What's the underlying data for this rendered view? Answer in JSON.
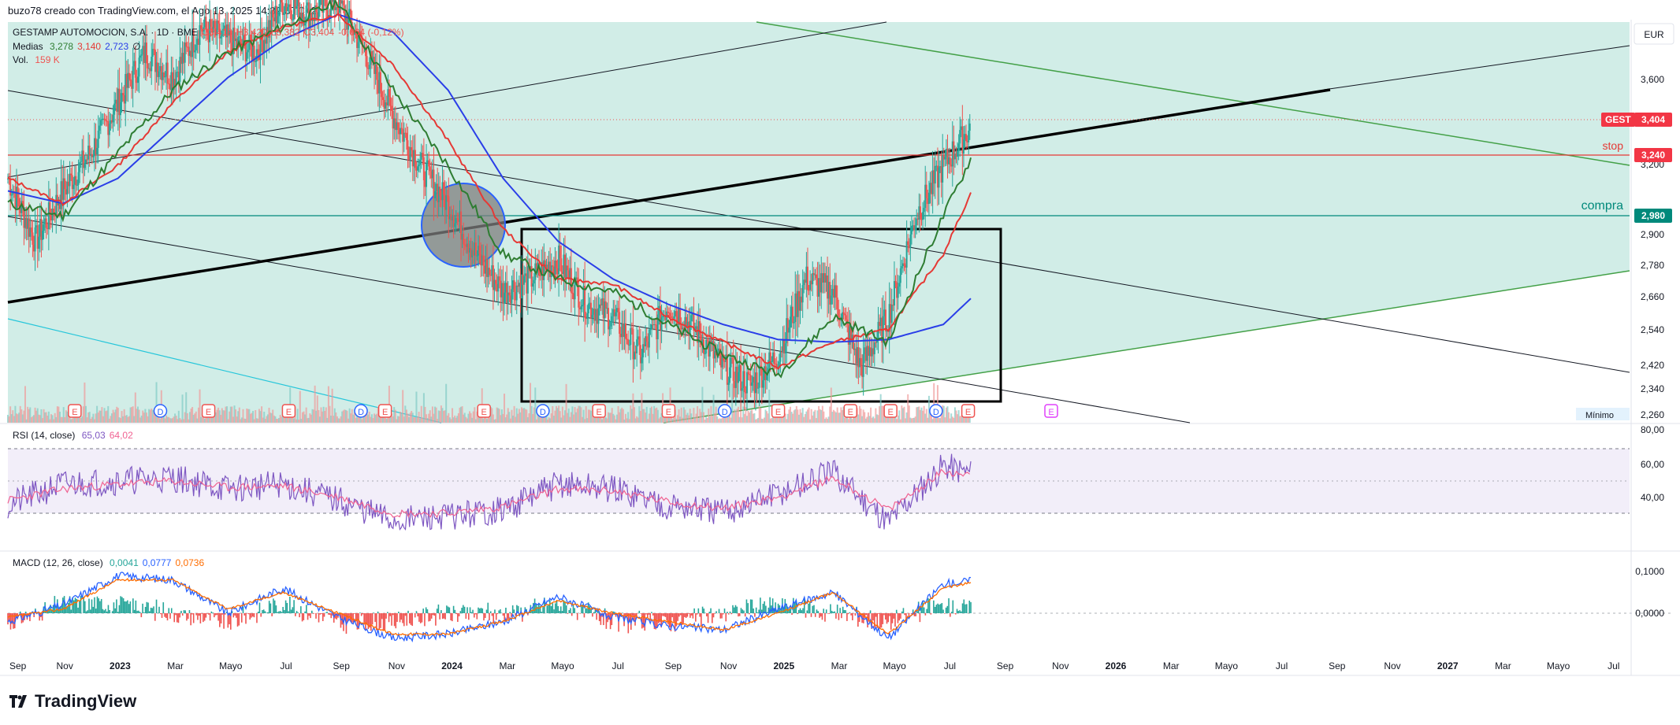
{
  "credit": "buzo78 creado con TradingView.com, el Ago 13, 2025 14:32 UTC+2",
  "currency": "EUR",
  "colors": {
    "channel_fill": "#d1ede7",
    "candle_up": "#26a69a",
    "candle_down": "#ef5350",
    "ma_green": "#2e7d32",
    "ma_red": "#e53935",
    "ma_blue": "#2a3ee8",
    "rsi_line": "#7e57c2",
    "rsi_ma": "#f06292",
    "macd_line": "#2962ff",
    "signal_line": "#ff6d00",
    "stop": "#e53935",
    "compra": "#00897b"
  },
  "legend": {
    "symbol_row": [
      {
        "text": "GESTAMP AUTOMOCION, S.A. · 1D · BME",
        "color": "#131722"
      },
      {
        "text": "O3,418",
        "color": "#ef5350"
      },
      {
        "text": "H3,420",
        "color": "#ef5350"
      },
      {
        "text": "L3,382",
        "color": "#ef5350"
      },
      {
        "text": "C3,404",
        "color": "#ef5350"
      },
      {
        "text": "-0,004 (-0,12%)",
        "color": "#ef5350"
      }
    ],
    "medias_label": "Medias",
    "medias_values": [
      {
        "text": "3,278",
        "color": "#2e7d32"
      },
      {
        "text": "3,140",
        "color": "#e53935"
      },
      {
        "text": "2,723",
        "color": "#2a3ee8"
      },
      {
        "text": "∅",
        "color": "#131722"
      }
    ],
    "vol_label": "Vol.",
    "vol_value": "159 K",
    "rsi_label": "RSI (14, close)",
    "rsi_values": [
      {
        "text": "65,03",
        "color": "#7e57c2"
      },
      {
        "text": "64,02",
        "color": "#f06292"
      }
    ],
    "macd_label": "MACD (12, 26, close)",
    "macd_values": [
      {
        "text": "0,0041",
        "color": "#26a69a"
      },
      {
        "text": "0,0777",
        "color": "#2962ff"
      },
      {
        "text": "0,0736",
        "color": "#ff6d00"
      }
    ]
  },
  "annotations": {
    "stop_label": "stop",
    "compra_label": "compra",
    "minimo_label": "Mínimo"
  },
  "price_tags": {
    "gest": {
      "symbol": "GEST",
      "value": "3,404"
    },
    "stop": "3,240",
    "compra": "2,980"
  },
  "logo_text": "TradingView",
  "chart_data": [
    {
      "type": "line",
      "title": "GESTAMP AUTOMOCION, S.A. · 1D · BME",
      "ylim": [
        2.23,
        3.82
      ],
      "y_ticks": [
        "3,600",
        "3,400",
        "3,200",
        "3,000",
        "2,900",
        "2,780",
        "2,660",
        "2,540",
        "2,420",
        "2,340",
        "2,260"
      ],
      "x_ticks": [
        "Sep",
        "Nov",
        "2023",
        "Mar",
        "Mayo",
        "Jul",
        "Sep",
        "Nov",
        "2024",
        "Mar",
        "Mayo",
        "Jul",
        "Sep",
        "Nov",
        "2025",
        "Mar",
        "Mayo",
        "Jul",
        "Sep",
        "Nov",
        "2026",
        "Mar",
        "Mayo",
        "Jul",
        "Sep",
        "Nov",
        "2027",
        "Mar",
        "Mayo",
        "Jul"
      ],
      "series": [
        {
          "name": "Close",
          "x": [
            "2022-09",
            "2022-10",
            "2022-11",
            "2022-12",
            "2023-01",
            "2023-02",
            "2023-03",
            "2023-04",
            "2023-05",
            "2023-06",
            "2023-07",
            "2023-08",
            "2023-09",
            "2023-10",
            "2023-11",
            "2023-12",
            "2024-01",
            "2024-02",
            "2024-03",
            "2024-04",
            "2024-05",
            "2024-06",
            "2024-07",
            "2024-08",
            "2024-09",
            "2024-10",
            "2024-11",
            "2024-12",
            "2025-01",
            "2025-02",
            "2025-03",
            "2025-04",
            "2025-05",
            "2025-06",
            "2025-07",
            "2025-08"
          ],
          "values": [
            3.2,
            2.95,
            3.15,
            3.3,
            3.5,
            3.7,
            3.6,
            3.8,
            3.75,
            3.7,
            3.9,
            3.85,
            3.9,
            3.7,
            3.45,
            3.25,
            3.1,
            2.9,
            2.75,
            2.8,
            2.88,
            2.7,
            2.65,
            2.5,
            2.7,
            2.6,
            2.45,
            2.38,
            2.5,
            2.8,
            2.75,
            2.45,
            2.65,
            3.05,
            3.25,
            3.404
          ]
        },
        {
          "name": "Medias",
          "x": [
            "2022-09",
            "2022-11",
            "2023-01",
            "2023-03",
            "2023-05",
            "2023-07",
            "2023-09",
            "2023-11",
            "2024-01",
            "2024-03",
            "2024-05",
            "2024-07",
            "2024-09",
            "2024-11",
            "2025-01",
            "2025-03",
            "2025-05",
            "2025-07",
            "2025-08"
          ],
          "values": [
            3.1,
            3.05,
            3.3,
            3.55,
            3.7,
            3.8,
            3.9,
            3.55,
            3.25,
            2.9,
            2.8,
            2.75,
            2.62,
            2.5,
            2.42,
            2.65,
            2.55,
            3.05,
            3.278
          ]
        },
        {
          "name": "Medias",
          "x": [
            "2022-09",
            "2022-11",
            "2023-01",
            "2023-03",
            "2023-05",
            "2023-07",
            "2023-09",
            "2023-11",
            "2024-01",
            "2024-03",
            "2024-05",
            "2024-07",
            "2024-09",
            "2024-11",
            "2025-01",
            "2025-03",
            "2025-05",
            "2025-07",
            "2025-08"
          ],
          "values": [
            3.2,
            3.1,
            3.25,
            3.5,
            3.7,
            3.8,
            3.85,
            3.65,
            3.35,
            3.0,
            2.8,
            2.78,
            2.65,
            2.55,
            2.45,
            2.55,
            2.6,
            2.9,
            3.14
          ]
        },
        {
          "name": "Medias",
          "x": [
            "2022-09",
            "2022-11",
            "2023-01",
            "2023-03",
            "2023-05",
            "2023-07",
            "2023-09",
            "2023-11",
            "2024-01",
            "2024-03",
            "2024-05",
            "2024-07",
            "2024-09",
            "2024-11",
            "2025-01",
            "2025-03",
            "2025-05",
            "2025-07",
            "2025-08"
          ],
          "values": [
            3.15,
            3.1,
            3.2,
            3.4,
            3.6,
            3.75,
            3.85,
            3.78,
            3.55,
            3.2,
            2.95,
            2.8,
            2.7,
            2.62,
            2.56,
            2.55,
            2.56,
            2.62,
            2.723
          ]
        }
      ]
    },
    {
      "type": "line",
      "title": "RSI (14, close)",
      "ylim": [
        25,
        85
      ],
      "y_ticks": [
        "80,00",
        "60,00",
        "40,00"
      ],
      "series": [
        {
          "name": "RSI (14, close)",
          "x": [
            "2022-09",
            "2022-11",
            "2023-01",
            "2023-03",
            "2023-05",
            "2023-07",
            "2023-09",
            "2023-11",
            "2024-01",
            "2024-03",
            "2024-05",
            "2024-07",
            "2024-09",
            "2024-11",
            "2025-01",
            "2025-03",
            "2025-05",
            "2025-07",
            "2025-08"
          ],
          "values": [
            45,
            58,
            60,
            62,
            55,
            58,
            48,
            35,
            38,
            42,
            58,
            55,
            45,
            40,
            52,
            65,
            35,
            70,
            65.03
          ]
        },
        {
          "name": "RSI (14, close)",
          "x": [
            "2022-09",
            "2022-11",
            "2023-01",
            "2023-03",
            "2023-05",
            "2023-07",
            "2023-09",
            "2023-11",
            "2024-01",
            "2024-03",
            "2024-05",
            "2024-07",
            "2024-09",
            "2024-11",
            "2025-01",
            "2025-03",
            "2025-05",
            "2025-07",
            "2025-08"
          ],
          "values": [
            48,
            55,
            58,
            60,
            56,
            57,
            50,
            40,
            40,
            44,
            55,
            54,
            47,
            43,
            50,
            62,
            42,
            66,
            64.02
          ]
        }
      ]
    },
    {
      "type": "line",
      "title": "MACD (12, 26, close)",
      "ylim": [
        -0.1,
        0.14
      ],
      "y_ticks": [
        "0,1000",
        "0,0000"
      ],
      "series": [
        {
          "name": "MACD (12, 26, close)",
          "x": [
            "2022-09",
            "2022-11",
            "2023-01",
            "2023-03",
            "2023-05",
            "2023-07",
            "2023-09",
            "2023-11",
            "2024-01",
            "2024-03",
            "2024-05",
            "2024-07",
            "2024-09",
            "2024-11",
            "2025-01",
            "2025-03",
            "2025-05",
            "2025-07",
            "2025-08"
          ],
          "values": [
            -0.02,
            0.02,
            0.09,
            0.08,
            0.0,
            0.06,
            -0.01,
            -0.06,
            -0.05,
            -0.02,
            0.04,
            -0.01,
            -0.03,
            -0.04,
            0.01,
            0.05,
            -0.06,
            0.07,
            0.0777
          ]
        },
        {
          "name": "MACD (12, 26, close)",
          "x": [
            "2022-09",
            "2022-11",
            "2023-01",
            "2023-03",
            "2023-05",
            "2023-07",
            "2023-09",
            "2023-11",
            "2024-01",
            "2024-03",
            "2024-05",
            "2024-07",
            "2024-09",
            "2024-11",
            "2025-01",
            "2025-03",
            "2025-05",
            "2025-07",
            "2025-08"
          ],
          "values": [
            -0.01,
            0.01,
            0.08,
            0.08,
            0.01,
            0.05,
            0.0,
            -0.05,
            -0.05,
            -0.02,
            0.03,
            0.0,
            -0.02,
            -0.04,
            0.0,
            0.05,
            -0.05,
            0.06,
            0.0736
          ]
        }
      ]
    }
  ]
}
